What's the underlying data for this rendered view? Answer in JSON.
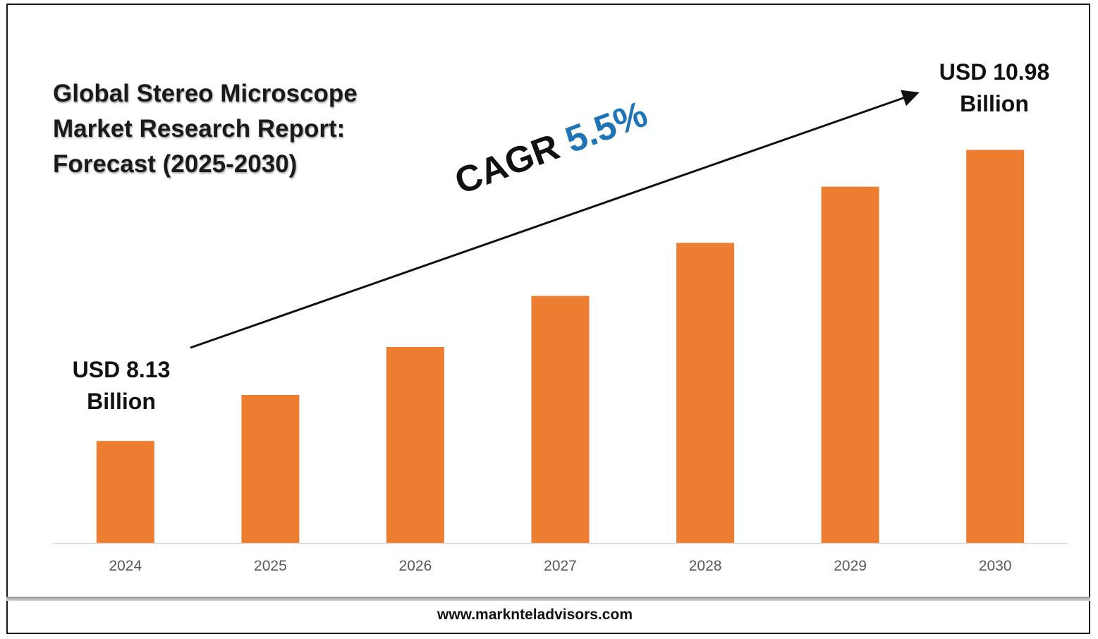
{
  "title_lines": [
    "Global Stereo Microscope",
    "Market Research Report:",
    "Forecast (2025-2030)"
  ],
  "start_callout": [
    "USD 8.13",
    "Billion"
  ],
  "end_callout": [
    "USD 10.98",
    "Billion"
  ],
  "cagr": {
    "label": "CAGR",
    "value": "5.5%"
  },
  "footer": {
    "url": "www.marknteladvisors.com"
  },
  "colors": {
    "bar": "#ed7d31",
    "cagr_value": "#1f73b7",
    "axis": "#d9d9d9",
    "text": "#111111",
    "tick": "#595959"
  },
  "chart_data": {
    "type": "bar",
    "title": "Global Stereo Microscope Market Research Report: Forecast (2025-2030)",
    "xlabel": "",
    "ylabel": "",
    "categories": [
      "2024",
      "2025",
      "2026",
      "2027",
      "2028",
      "2029",
      "2030"
    ],
    "values": [
      8.13,
      8.58,
      9.05,
      9.55,
      10.07,
      10.62,
      10.98
    ],
    "unit": "USD Billion",
    "ylim": [
      7.13,
      11.55
    ],
    "grid": false,
    "legend": "none",
    "annotations": [
      "USD 8.13 Billion",
      "USD 10.98 Billion",
      "CAGR 5.5%"
    ]
  }
}
